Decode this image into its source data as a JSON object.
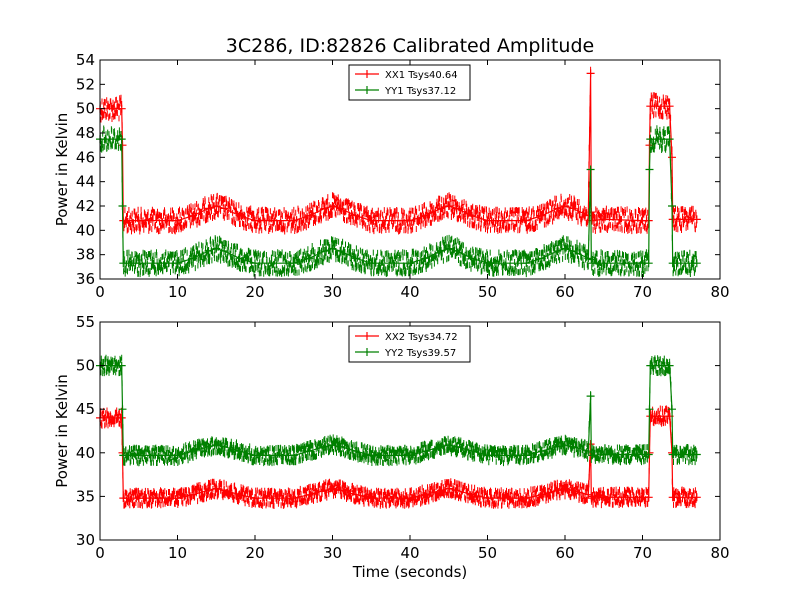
{
  "chart_data": [
    {
      "type": "line",
      "title": "3C286, ID:82826 Calibrated Amplitude",
      "xlabel": "",
      "ylabel": "Power in Kelvin",
      "xlim": [
        0,
        80
      ],
      "ylim": [
        36,
        54
      ],
      "xticks": [
        0,
        10,
        20,
        30,
        40,
        50,
        60,
        70,
        80
      ],
      "yticks": [
        36,
        38,
        40,
        42,
        44,
        46,
        48,
        50,
        52,
        54
      ],
      "grid": false,
      "legend_position": "top-center",
      "series": [
        {
          "name": "XX1 Tsys40.64",
          "color": "#ff0000",
          "x": [
            0,
            2.8,
            2.9,
            3,
            5,
            10,
            12,
            14,
            15,
            16,
            18,
            20,
            25,
            27,
            29,
            30,
            31,
            33,
            35,
            40,
            42,
            44,
            45,
            46,
            48,
            50,
            55,
            57,
            59,
            60,
            61,
            63,
            63.3,
            63.4,
            63.5,
            65,
            70,
            70.8,
            70.9,
            71,
            73.5,
            73.8,
            73.9,
            74,
            77
          ],
          "y": [
            50,
            50,
            47,
            40.8,
            40.8,
            40.8,
            41.2,
            41.8,
            42,
            41.8,
            41.2,
            40.8,
            40.8,
            41.2,
            41.8,
            42,
            41.8,
            41.2,
            40.8,
            40.8,
            41.2,
            41.8,
            42,
            41.8,
            41.2,
            40.8,
            40.8,
            41.2,
            41.8,
            42,
            41.8,
            41.2,
            52.9,
            41.5,
            40.8,
            40.9,
            40.8,
            40.8,
            47,
            50.2,
            50.2,
            46,
            40.9,
            40.9,
            40.9
          ]
        },
        {
          "name": "YY1 Tsys37.12",
          "color": "#008000",
          "x": [
            0,
            2.8,
            2.9,
            3,
            5,
            10,
            12,
            14,
            15,
            16,
            18,
            20,
            25,
            27,
            29,
            30,
            31,
            33,
            35,
            40,
            42,
            44,
            45,
            46,
            48,
            50,
            55,
            57,
            59,
            60,
            61,
            63,
            63.3,
            63.4,
            63.5,
            65,
            70,
            70.8,
            70.9,
            71,
            73.5,
            73.8,
            73.9,
            74,
            77
          ],
          "y": [
            47.5,
            47.5,
            42,
            37.3,
            37.3,
            37.3,
            37.7,
            38.3,
            38.5,
            38.3,
            37.7,
            37.3,
            37.3,
            37.7,
            38.3,
            38.5,
            38.3,
            37.7,
            37.3,
            37.3,
            37.7,
            38.3,
            38.5,
            38.3,
            37.7,
            37.3,
            37.3,
            37.7,
            38.3,
            38.5,
            38.3,
            37.7,
            45,
            37.6,
            37.3,
            37.3,
            37.3,
            37.3,
            45,
            47.5,
            47.5,
            42,
            37.3,
            37.3,
            37.3
          ]
        }
      ]
    },
    {
      "type": "line",
      "title": "",
      "xlabel": "Time (seconds)",
      "ylabel": "Power in Kelvin",
      "xlim": [
        0,
        80
      ],
      "ylim": [
        30,
        55
      ],
      "xticks": [
        0,
        10,
        20,
        30,
        40,
        50,
        60,
        70,
        80
      ],
      "yticks": [
        30,
        35,
        40,
        45,
        50,
        55
      ],
      "grid": false,
      "legend_position": "top-center",
      "series": [
        {
          "name": "XX2 Tsys34.72",
          "color": "#ff0000",
          "x": [
            0,
            2.8,
            2.9,
            3,
            5,
            10,
            12,
            14,
            15,
            16,
            18,
            20,
            25,
            27,
            29,
            30,
            31,
            33,
            35,
            40,
            42,
            44,
            45,
            46,
            48,
            50,
            55,
            57,
            59,
            60,
            61,
            63,
            63.3,
            63.4,
            63.5,
            65,
            70,
            70.8,
            70.9,
            71,
            73.5,
            73.8,
            73.9,
            74,
            77
          ],
          "y": [
            44,
            44,
            40,
            34.8,
            34.8,
            34.8,
            35.2,
            35.7,
            35.9,
            35.7,
            35.2,
            34.8,
            34.8,
            35.2,
            35.7,
            35.9,
            35.7,
            35.2,
            34.8,
            34.8,
            35.2,
            35.7,
            35.9,
            35.7,
            35.2,
            34.8,
            34.8,
            35.2,
            35.7,
            35.9,
            35.7,
            35.2,
            41,
            35,
            34.8,
            34.9,
            34.9,
            34.9,
            40,
            44.2,
            44.2,
            40,
            34.9,
            34.9,
            34.9
          ]
        },
        {
          "name": "YY2 Tsys39.57",
          "color": "#008000",
          "x": [
            0,
            2.8,
            2.9,
            3,
            5,
            10,
            12,
            14,
            15,
            16,
            18,
            20,
            25,
            27,
            29,
            30,
            31,
            33,
            35,
            40,
            42,
            44,
            45,
            46,
            48,
            50,
            55,
            57,
            59,
            60,
            61,
            63,
            63.3,
            63.4,
            63.5,
            65,
            70,
            70.8,
            70.9,
            71,
            73.5,
            73.8,
            73.9,
            74,
            77
          ],
          "y": [
            50,
            50,
            45,
            39.7,
            39.7,
            39.7,
            40.2,
            40.7,
            40.9,
            40.7,
            40.2,
            39.7,
            39.7,
            40.2,
            40.7,
            40.9,
            40.7,
            40.2,
            39.7,
            39.7,
            40.2,
            40.7,
            40.9,
            40.7,
            40.2,
            39.7,
            39.7,
            40.2,
            40.7,
            40.9,
            40.7,
            40.2,
            46.5,
            40,
            39.7,
            39.8,
            39.8,
            39.8,
            45,
            50,
            50,
            45,
            39.8,
            39.8,
            39.8
          ]
        }
      ]
    }
  ]
}
